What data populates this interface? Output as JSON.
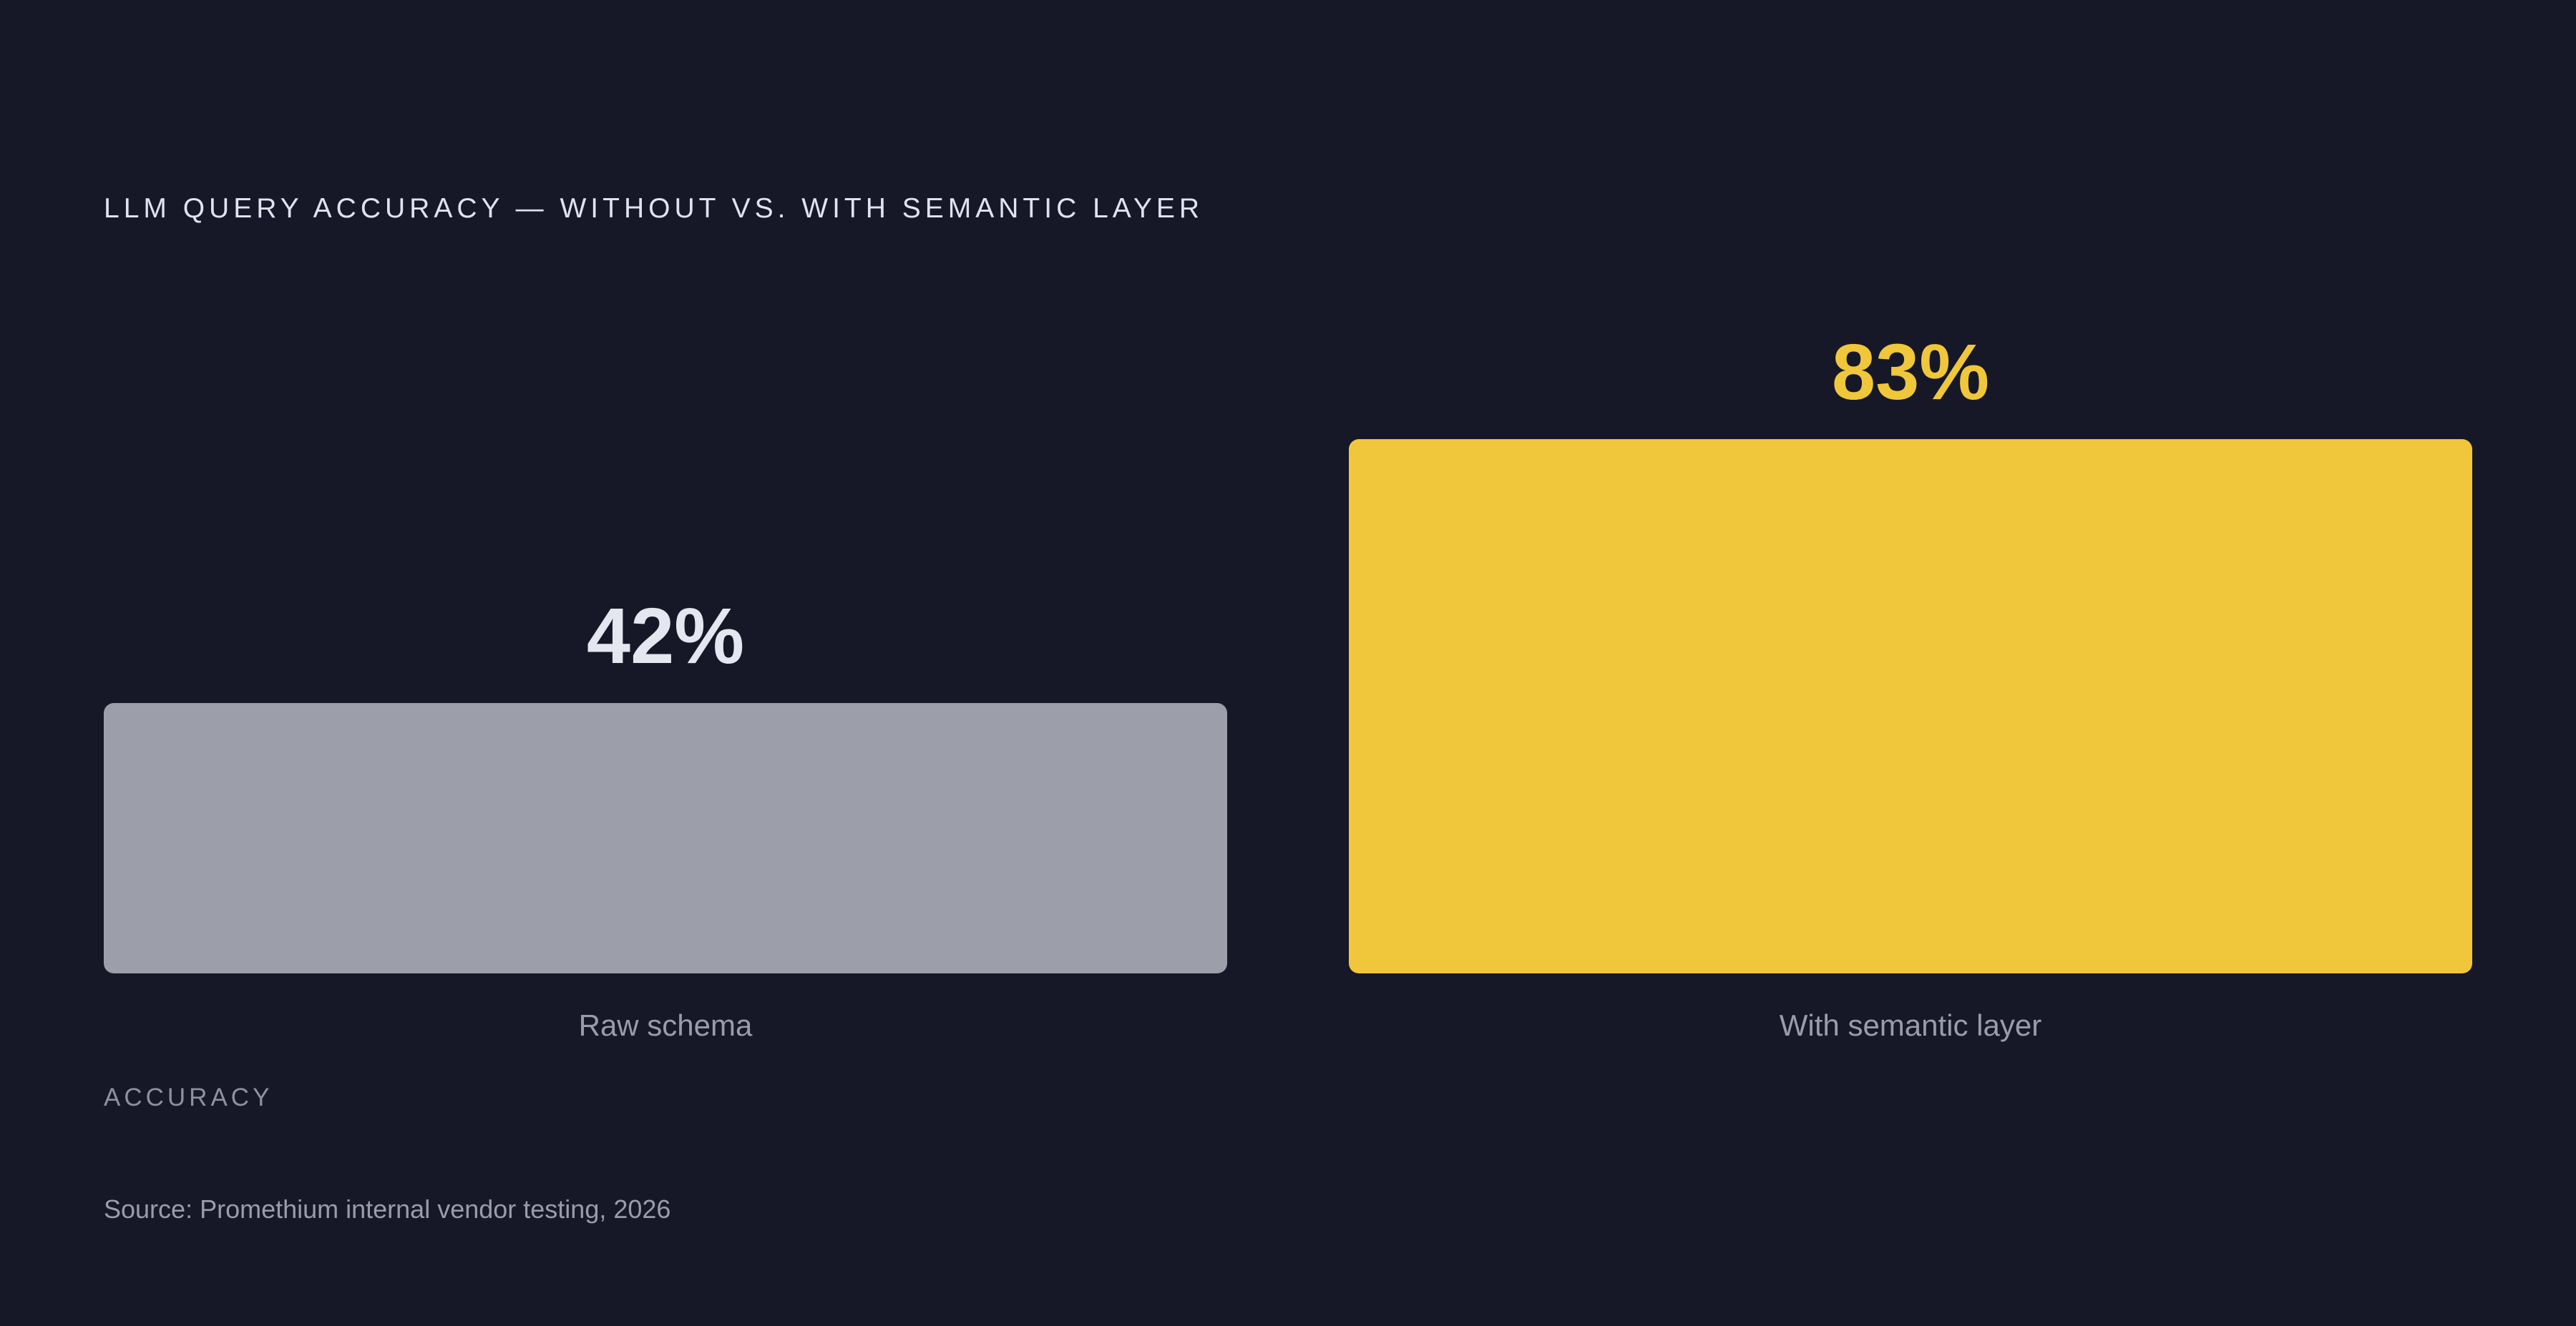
{
  "chart_data": {
    "type": "bar",
    "title": "LLM QUERY ACCURACY — WITHOUT VS. WITH SEMANTIC LAYER",
    "categories": [
      "Raw schema",
      "With semantic layer"
    ],
    "values": [
      42,
      83
    ],
    "value_labels": [
      "42%",
      "83%"
    ],
    "colors": [
      "#9c9eaa",
      "#f0c73b"
    ],
    "ylabel": "ACCURACY",
    "ylim": [
      0,
      100
    ],
    "source": "Source: Promethium internal vendor testing, 2026"
  }
}
